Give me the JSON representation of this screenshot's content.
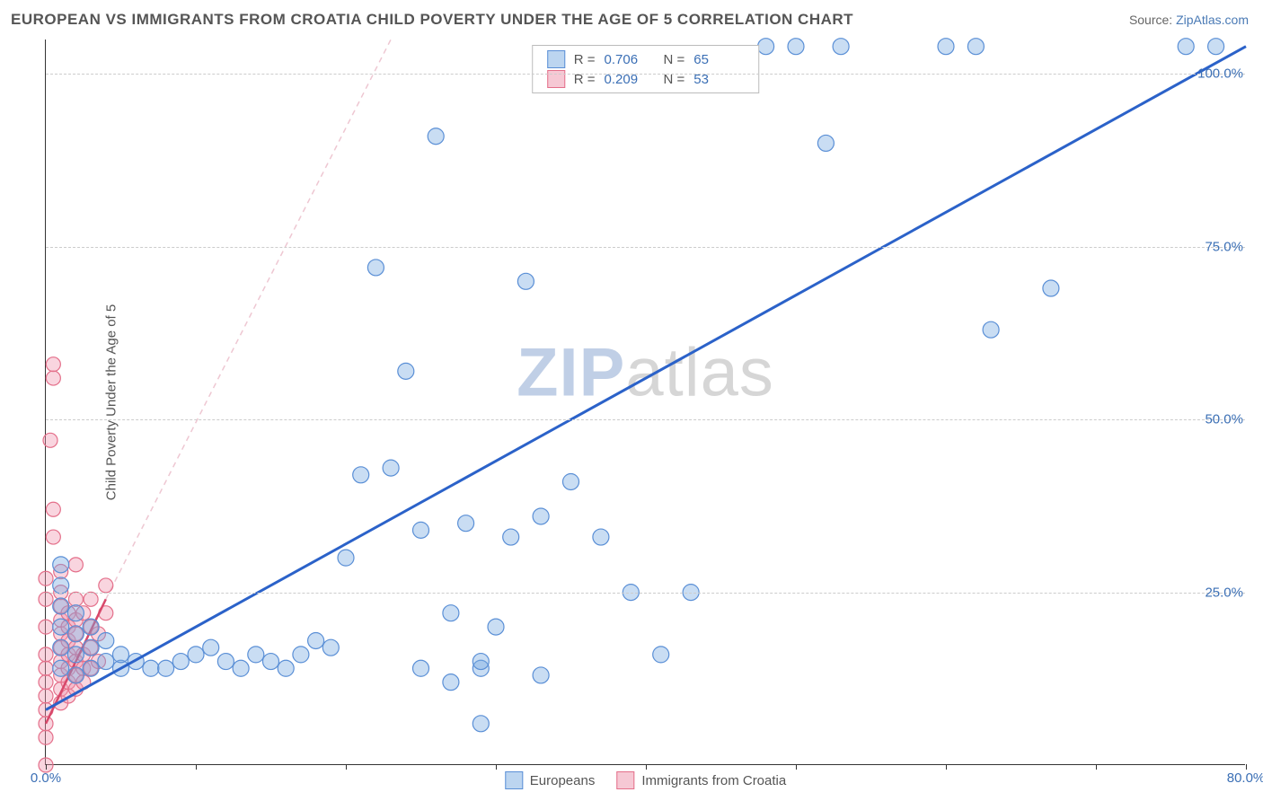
{
  "title": "EUROPEAN VS IMMIGRANTS FROM CROATIA CHILD POVERTY UNDER THE AGE OF 5 CORRELATION CHART",
  "source_label": "Source: ",
  "source_link": "ZipAtlas.com",
  "watermark_a": "ZIP",
  "watermark_b": "atlas",
  "chart": {
    "type": "scatter",
    "ylabel": "Child Poverty Under the Age of 5",
    "xlim": [
      0,
      80
    ],
    "ylim": [
      0,
      105
    ],
    "xtick_positions": [
      0,
      10,
      20,
      30,
      40,
      50,
      60,
      70,
      80
    ],
    "xtick_labels": {
      "0": "0.0%",
      "80": "80.0%"
    },
    "ytick_positions": [
      25,
      50,
      75,
      100
    ],
    "ytick_labels": {
      "25": "25.0%",
      "50": "50.0%",
      "75": "75.0%",
      "100": "100.0%"
    },
    "grid_color": "#cccccc",
    "axis_color": "#333333",
    "background_color": "#ffffff",
    "label_color": "#3b6fb5",
    "text_color": "#555555"
  },
  "legend_top": {
    "rows": [
      {
        "swatch_fill": "#bcd5f0",
        "swatch_border": "#5a8fd6",
        "r_label": "R =",
        "r_value": "0.706",
        "n_label": "N =",
        "n_value": "65"
      },
      {
        "swatch_fill": "#f6c8d4",
        "swatch_border": "#e46f8a",
        "r_label": "R =",
        "r_value": "0.209",
        "n_label": "N =",
        "n_value": "53"
      }
    ]
  },
  "legend_bottom": {
    "items": [
      {
        "swatch_fill": "#bcd5f0",
        "swatch_border": "#5a8fd6",
        "label": "Europeans"
      },
      {
        "swatch_fill": "#f6c8d4",
        "swatch_border": "#e46f8a",
        "label": "Immigrants from Croatia"
      }
    ]
  },
  "series": {
    "europeans": {
      "color_fill": "rgba(120, 170, 225, 0.40)",
      "color_stroke": "#5a8fd6",
      "marker_radius": 9,
      "trend": {
        "x1": 0,
        "y1": 8,
        "x2": 80,
        "y2": 104,
        "stroke": "#2b62c9",
        "width": 3
      },
      "points": [
        [
          1,
          26
        ],
        [
          1,
          23
        ],
        [
          1,
          20
        ],
        [
          1,
          17
        ],
        [
          1,
          14
        ],
        [
          1,
          29
        ],
        [
          2,
          16
        ],
        [
          2,
          13
        ],
        [
          2,
          19
        ],
        [
          2,
          22
        ],
        [
          3,
          14
        ],
        [
          3,
          17
        ],
        [
          3,
          20
        ],
        [
          4,
          15
        ],
        [
          4,
          18
        ],
        [
          5,
          14
        ],
        [
          5,
          16
        ],
        [
          6,
          15
        ],
        [
          7,
          14
        ],
        [
          8,
          14
        ],
        [
          9,
          15
        ],
        [
          10,
          16
        ],
        [
          11,
          17
        ],
        [
          12,
          15
        ],
        [
          13,
          14
        ],
        [
          14,
          16
        ],
        [
          15,
          15
        ],
        [
          16,
          14
        ],
        [
          17,
          16
        ],
        [
          18,
          18
        ],
        [
          19,
          17
        ],
        [
          20,
          30
        ],
        [
          21,
          42
        ],
        [
          22,
          72
        ],
        [
          23,
          43
        ],
        [
          24,
          57
        ],
        [
          25,
          34
        ],
        [
          26,
          91
        ],
        [
          27,
          22
        ],
        [
          28,
          35
        ],
        [
          29,
          14
        ],
        [
          30,
          20
        ],
        [
          31,
          33
        ],
        [
          32,
          70
        ],
        [
          33,
          36
        ],
        [
          35,
          41
        ],
        [
          37,
          33
        ],
        [
          39,
          25
        ],
        [
          41,
          16
        ],
        [
          43,
          25
        ],
        [
          29,
          6
        ],
        [
          33,
          13
        ],
        [
          27,
          12
        ],
        [
          25,
          14
        ],
        [
          29,
          15
        ],
        [
          48,
          104
        ],
        [
          50,
          104
        ],
        [
          53,
          104
        ],
        [
          52,
          90
        ],
        [
          63,
          63
        ],
        [
          67,
          69
        ],
        [
          60,
          104
        ],
        [
          62,
          104
        ],
        [
          76,
          104
        ],
        [
          78,
          104
        ]
      ]
    },
    "croatia": {
      "color_fill": "rgba(240, 150, 175, 0.40)",
      "color_stroke": "#e46f8a",
      "marker_radius": 8,
      "trend_solid": {
        "x1": 0,
        "y1": 6,
        "x2": 4,
        "y2": 24,
        "stroke": "#d8486a",
        "width": 2.5
      },
      "trend_dash": {
        "x1": 4,
        "y1": 24,
        "x2": 23,
        "y2": 105,
        "stroke": "#eec7d2",
        "width": 1.5,
        "dash": "6 5"
      },
      "points": [
        [
          0,
          0
        ],
        [
          0,
          4
        ],
        [
          0,
          6
        ],
        [
          0,
          8
        ],
        [
          0,
          10
        ],
        [
          0,
          12
        ],
        [
          0,
          14
        ],
        [
          0,
          16
        ],
        [
          0,
          20
        ],
        [
          0,
          24
        ],
        [
          0,
          27
        ],
        [
          0.3,
          47
        ],
        [
          0.5,
          56
        ],
        [
          0.5,
          58
        ],
        [
          0.5,
          37
        ],
        [
          0.5,
          33
        ],
        [
          1,
          9
        ],
        [
          1,
          11
        ],
        [
          1,
          13
        ],
        [
          1,
          15
        ],
        [
          1,
          17
        ],
        [
          1,
          19
        ],
        [
          1,
          21
        ],
        [
          1,
          23
        ],
        [
          1,
          25
        ],
        [
          1,
          28
        ],
        [
          1.5,
          10
        ],
        [
          1.5,
          12
        ],
        [
          1.5,
          14
        ],
        [
          1.5,
          16
        ],
        [
          1.5,
          18
        ],
        [
          1.5,
          20
        ],
        [
          1.5,
          22
        ],
        [
          2,
          11
        ],
        [
          2,
          13
        ],
        [
          2,
          15
        ],
        [
          2,
          17
        ],
        [
          2,
          19
        ],
        [
          2,
          21
        ],
        [
          2,
          24
        ],
        [
          2,
          29
        ],
        [
          2.5,
          12
        ],
        [
          2.5,
          14
        ],
        [
          2.5,
          16
        ],
        [
          2.5,
          22
        ],
        [
          3,
          14
        ],
        [
          3,
          17
        ],
        [
          3,
          20
        ],
        [
          3,
          24
        ],
        [
          3.5,
          15
        ],
        [
          3.5,
          19
        ],
        [
          4,
          22
        ],
        [
          4,
          26
        ]
      ]
    }
  }
}
